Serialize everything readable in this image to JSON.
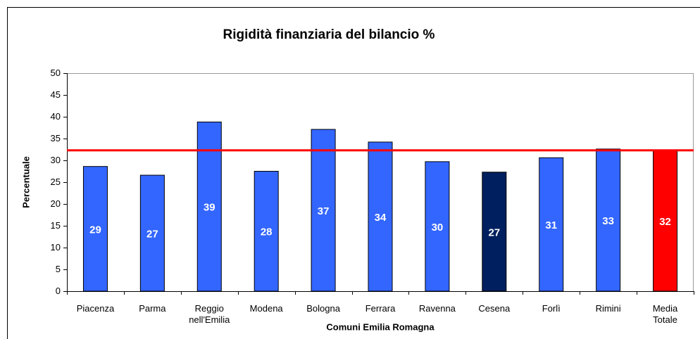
{
  "chart_data": {
    "type": "bar",
    "title": "Rigidità finanziaria del bilancio %",
    "x_label": "Comuni Emilia Romagna",
    "y_label": "Percentuale",
    "categories": [
      "Piacenza",
      "Parma",
      "Reggio nell'Emilia",
      "Modena",
      "Bologna",
      "Ferrara",
      "Ravenna",
      "Cesena",
      "Forlì",
      "Rimini",
      "Media Totale"
    ],
    "values": [
      28.6,
      26.6,
      38.8,
      27.5,
      37.1,
      34.2,
      29.7,
      27.3,
      30.6,
      32.6,
      32.3
    ],
    "value_labels": [
      "29",
      "27",
      "39",
      "28",
      "37",
      "34",
      "30",
      "27",
      "31",
      "33",
      "32"
    ],
    "colors": [
      "#3366ff",
      "#3366ff",
      "#3366ff",
      "#3366ff",
      "#3366ff",
      "#3366ff",
      "#3366ff",
      "#001f5f",
      "#3366ff",
      "#3366ff",
      "#ff0000"
    ],
    "reference_line": 32.3,
    "reference_color": "#ff0000",
    "ylim": [
      0,
      50
    ],
    "yticks": [
      0,
      5,
      10,
      15,
      20,
      25,
      30,
      35,
      40,
      45,
      50
    ]
  }
}
